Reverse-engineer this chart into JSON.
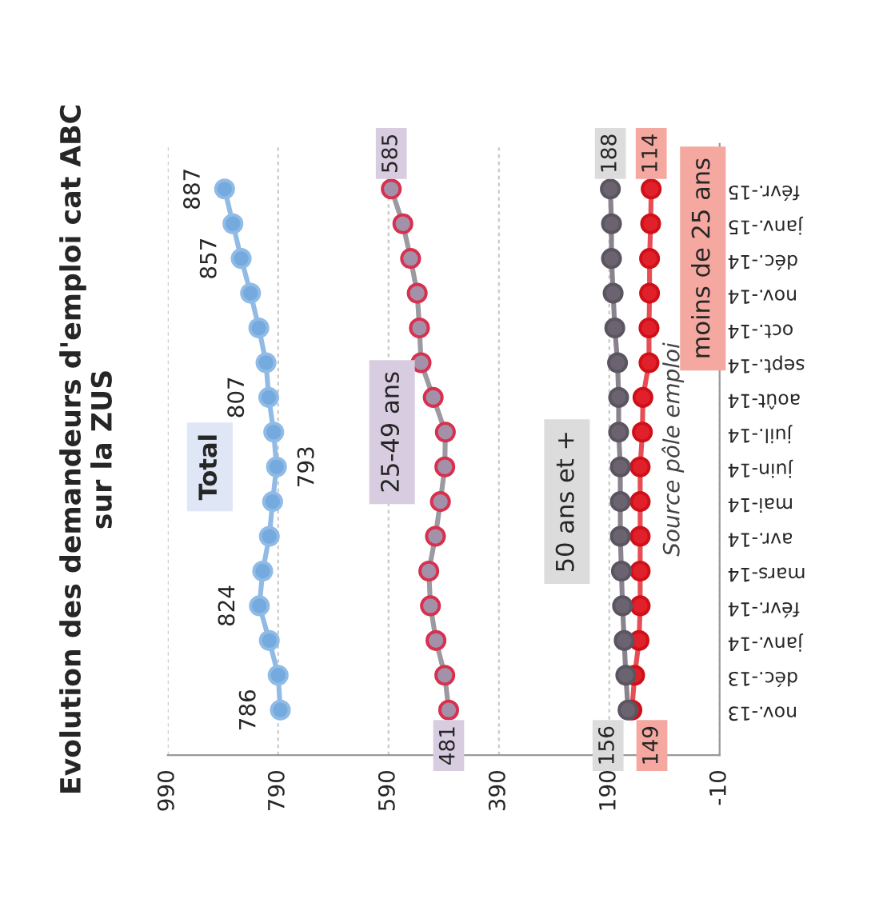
{
  "chart_data": {
    "type": "line",
    "orientation": "horizontal",
    "title": "Evolution des demandeurs d'emploi cat ABC\nsur la ZUS",
    "categories": [
      "févr.-15",
      "janv.-15",
      "déc.-14",
      "nov.-14",
      "oct.-14",
      "sept.-14",
      "août-14",
      "juil.-14",
      "juin-14",
      "mai-14",
      "avr.-14",
      "mars-14",
      "févr.-14",
      "janv.-14",
      "déc.-13",
      "nov.-13"
    ],
    "series": [
      {
        "name": "Total",
        "color": "#75aadf",
        "values": [
          887,
          872,
          857,
          840,
          825,
          812,
          807,
          798,
          793,
          800,
          806,
          818,
          824,
          806,
          790,
          786
        ],
        "value_labels": [
          "887",
          null,
          "857",
          null,
          null,
          null,
          "807",
          null,
          "793",
          null,
          null,
          null,
          "824",
          null,
          null,
          "786"
        ]
      },
      {
        "name": "25-49 ans",
        "color": "#a391a9",
        "values": [
          585,
          564,
          550,
          538,
          534,
          531,
          509,
          487,
          488,
          496,
          505,
          517,
          514,
          504,
          488,
          481
        ],
        "value_labels": [
          "585",
          null,
          null,
          null,
          null,
          null,
          null,
          null,
          null,
          null,
          null,
          null,
          null,
          null,
          null,
          "481"
        ]
      },
      {
        "name": "50 ans et +",
        "color": "#6b6470",
        "values": [
          188,
          186,
          186,
          183,
          180,
          175,
          173,
          173,
          170,
          170,
          170,
          168,
          166,
          163,
          160,
          156
        ],
        "value_labels": [
          "188",
          null,
          null,
          null,
          null,
          null,
          null,
          null,
          null,
          null,
          null,
          null,
          null,
          null,
          null,
          "156"
        ]
      },
      {
        "name": "moins de 25 ans",
        "color": "#e0202a",
        "values": [
          114,
          115,
          117,
          117,
          118,
          118,
          129,
          130,
          134,
          134,
          134,
          134,
          134,
          136,
          144,
          149
        ],
        "value_labels": [
          "114",
          null,
          null,
          null,
          null,
          null,
          null,
          null,
          null,
          null,
          null,
          null,
          null,
          null,
          null,
          "149"
        ]
      }
    ],
    "xlim": [
      990,
      -10
    ],
    "xticks": [
      990,
      790,
      590,
      390,
      190,
      -10
    ],
    "grid": "x",
    "marker": "circle",
    "line_style": "solid",
    "annotations": [
      "Source pôle emploi"
    ]
  }
}
